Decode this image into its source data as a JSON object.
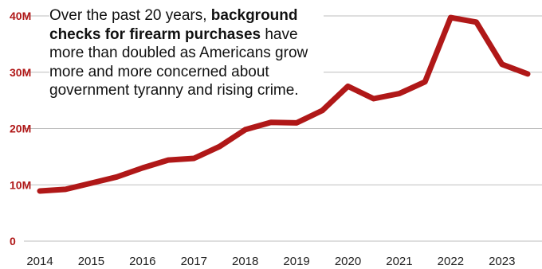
{
  "annotation": {
    "pre": "Over the past 20 years, ",
    "bold": "background checks for firearm purchases",
    "post": " have more than doubled as Americans grow more and more concerned about government tyranny and rising crime."
  },
  "colors": {
    "line": "#b01818",
    "ytick": "#b01818",
    "grid": "#bdbdbd",
    "xtick": "#222222"
  },
  "chart_data": {
    "type": "line",
    "title": "",
    "xlabel": "",
    "ylabel": "",
    "x_tick_labels": [
      "2014",
      "2015",
      "2016",
      "2017",
      "2018",
      "2019",
      "2020",
      "2021",
      "2022",
      "2023"
    ],
    "y_tick_labels": [
      "0",
      "10M",
      "20M",
      "30M",
      "40M"
    ],
    "ylim": [
      0,
      40
    ],
    "y_unit": "millions",
    "grid": "horizontal",
    "series": [
      {
        "x": [
          2014.0,
          2014.5,
          2015.0,
          2015.5,
          2016.0,
          2016.5,
          2017.0,
          2017.5,
          2018.0,
          2018.5,
          2019.0,
          2019.5,
          2020.0,
          2020.5,
          2021.0,
          2021.5,
          2022.0,
          2022.5,
          2023.0,
          2023.5
        ],
        "values": [
          8.9,
          9.2,
          10.3,
          11.4,
          13.0,
          14.4,
          14.7,
          16.8,
          19.8,
          21.1,
          21.0,
          23.2,
          27.5,
          25.3,
          26.2,
          28.3,
          39.7,
          38.9,
          31.4,
          29.7
        ]
      }
    ]
  }
}
